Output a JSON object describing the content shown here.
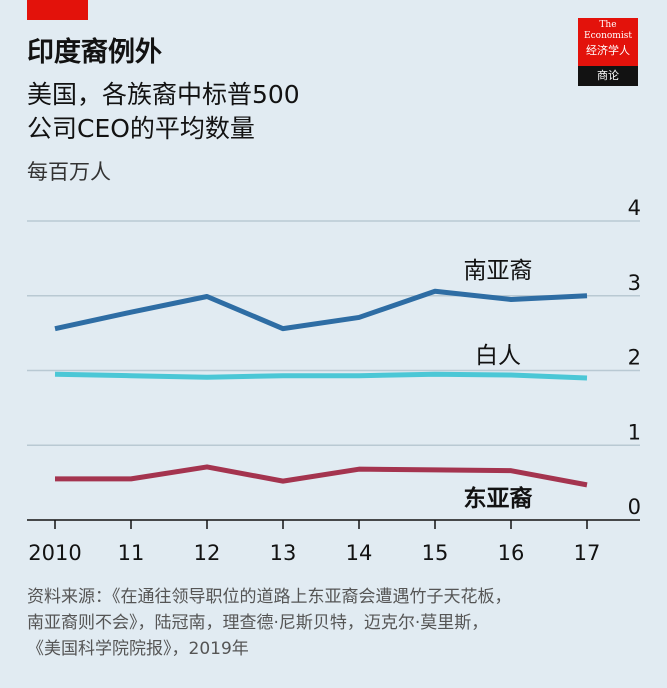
{
  "header": {
    "title": "印度裔例外",
    "subtitle": "美国，各族裔中标普500\n公司CEO的平均数量",
    "units": "每百万人"
  },
  "logo": {
    "line1": "The",
    "line2": "Economist",
    "cn": "经济学人",
    "bottom": "商论"
  },
  "source": "资料来源：《在通往领导职位的道路上东亚裔会遭遇竹子天花板，\n南亚裔则不会》，陆冠南，理查德·尼斯贝特，迈克尔·莫里斯，\n《美国科学院院报》，2019年",
  "colors": {
    "accent": "#e3120b",
    "south_asian": "#2e6da4",
    "white": "#4cc7d6",
    "east_asian": "#a4344f",
    "grid": "#b9c9d3"
  },
  "chart_data": {
    "type": "line",
    "x_tick_labels": [
      "2010",
      "11",
      "12",
      "13",
      "14",
      "15",
      "16",
      "17"
    ],
    "x": [
      2010,
      2011,
      2012,
      2013,
      2014,
      2015,
      2016,
      2017
    ],
    "xlim": [
      2010,
      2017
    ],
    "ylim": [
      0,
      4
    ],
    "y_ticks": [
      0,
      1,
      2,
      3,
      4
    ],
    "y_tick_labels": [
      "0",
      "1",
      "2",
      "3",
      "4"
    ],
    "grid": true,
    "y_axis_side": "right",
    "series": [
      {
        "name": "南亚裔",
        "color": "#2e6da4",
        "values": [
          2.56,
          2.78,
          2.99,
          2.56,
          2.71,
          3.06,
          2.95,
          3.0
        ]
      },
      {
        "name": "白人",
        "color": "#4cc7d6",
        "values": [
          1.95,
          1.93,
          1.91,
          1.93,
          1.93,
          1.95,
          1.94,
          1.9
        ]
      },
      {
        "name": "东亚裔",
        "color": "#a4344f",
        "values": [
          0.55,
          0.55,
          0.71,
          0.52,
          0.68,
          0.67,
          0.66,
          0.47
        ]
      }
    ]
  }
}
